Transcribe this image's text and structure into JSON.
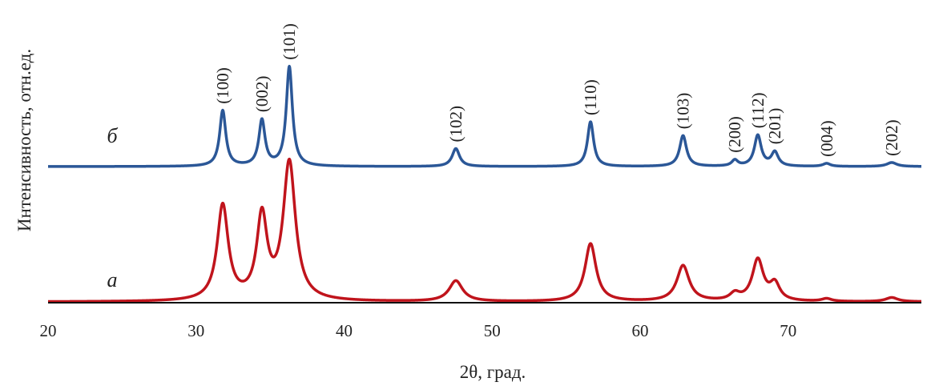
{
  "chart_data": {
    "type": "line",
    "xlabel": "2θ, град.",
    "ylabel": "Интенсивность, отн.ед.",
    "xlim": [
      20,
      79
    ],
    "x_ticks": [
      20,
      30,
      40,
      50,
      60,
      70
    ],
    "grid": false,
    "legend": "none",
    "series": [
      {
        "name": "б",
        "color": "#2b5797",
        "baseline": 0,
        "peaks": [
          {
            "x": 31.8,
            "height": 0.56,
            "width": 0.25
          },
          {
            "x": 34.45,
            "height": 0.46,
            "width": 0.25
          },
          {
            "x": 36.3,
            "height": 1.0,
            "width": 0.25
          },
          {
            "x": 47.55,
            "height": 0.18,
            "width": 0.3
          },
          {
            "x": 56.65,
            "height": 0.45,
            "width": 0.25
          },
          {
            "x": 62.9,
            "height": 0.31,
            "width": 0.28
          },
          {
            "x": 66.4,
            "height": 0.06,
            "width": 0.25
          },
          {
            "x": 67.95,
            "height": 0.31,
            "width": 0.28
          },
          {
            "x": 69.1,
            "height": 0.14,
            "width": 0.28
          },
          {
            "x": 72.6,
            "height": 0.03,
            "width": 0.3
          },
          {
            "x": 77.0,
            "height": 0.04,
            "width": 0.4
          }
        ]
      },
      {
        "name": "а",
        "color": "#c0141c",
        "baseline": 0,
        "peaks": [
          {
            "x": 31.8,
            "height": 0.69,
            "width": 0.45
          },
          {
            "x": 34.45,
            "height": 0.6,
            "width": 0.42
          },
          {
            "x": 36.3,
            "height": 1.0,
            "width": 0.5
          },
          {
            "x": 47.55,
            "height": 0.15,
            "width": 0.55
          },
          {
            "x": 56.65,
            "height": 0.42,
            "width": 0.45
          },
          {
            "x": 62.9,
            "height": 0.26,
            "width": 0.5
          },
          {
            "x": 66.4,
            "height": 0.05,
            "width": 0.4
          },
          {
            "x": 67.95,
            "height": 0.3,
            "width": 0.45
          },
          {
            "x": 69.1,
            "height": 0.12,
            "width": 0.4
          },
          {
            "x": 72.6,
            "height": 0.02,
            "width": 0.4
          },
          {
            "x": 77.0,
            "height": 0.03,
            "width": 0.5
          }
        ]
      }
    ],
    "annotations": [
      {
        "text": "(100)",
        "x": 31.8
      },
      {
        "text": "(002)",
        "x": 34.45
      },
      {
        "text": "(101)",
        "x": 36.3
      },
      {
        "text": "(102)",
        "x": 47.55
      },
      {
        "text": "(110)",
        "x": 56.65
      },
      {
        "text": "(103)",
        "x": 62.9
      },
      {
        "text": "(200)",
        "x": 66.4
      },
      {
        "text": "(112)",
        "x": 67.95
      },
      {
        "text": "(201)",
        "x": 69.1
      },
      {
        "text": "(004)",
        "x": 72.6
      },
      {
        "text": "(202)",
        "x": 77.0
      }
    ]
  }
}
